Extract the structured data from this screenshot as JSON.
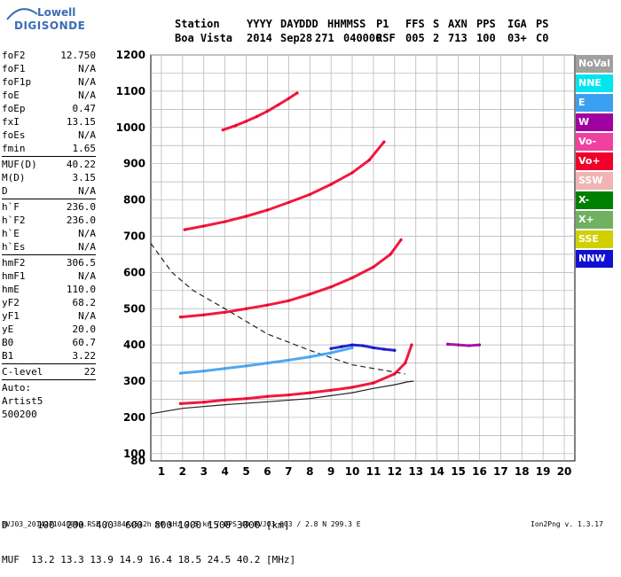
{
  "logo": {
    "line1": "Lowell",
    "line2": "DIGISONDE"
  },
  "header": {
    "labels": [
      "Station",
      "YYYY",
      "DAY",
      "DDD",
      "HHMMSS",
      "P1",
      "FFS",
      "S",
      "AXN",
      "PPS",
      "IGA",
      "PS"
    ],
    "values": [
      "Boa Vista",
      "2014",
      "Sep28",
      "271",
      "040000",
      "RSF",
      "005",
      "2",
      "713",
      "100",
      "03+",
      "C0"
    ]
  },
  "params": [
    {
      "name": "foF2",
      "value": "12.750"
    },
    {
      "name": "foF1",
      "value": "N/A"
    },
    {
      "name": "foF1p",
      "value": "N/A"
    },
    {
      "name": "foE",
      "value": "N/A"
    },
    {
      "name": "foEp",
      "value": "0.47"
    },
    {
      "name": "fxI",
      "value": "13.15"
    },
    {
      "name": "foEs",
      "value": "N/A"
    },
    {
      "name": "fmin",
      "value": "1.65",
      "sep": true
    },
    {
      "name": "MUF(D)",
      "value": "40.22"
    },
    {
      "name": "M(D)",
      "value": "3.15"
    },
    {
      "name": "D",
      "value": "N/A",
      "sep": true
    },
    {
      "name": "h`F",
      "value": "236.0"
    },
    {
      "name": "h`F2",
      "value": "236.0"
    },
    {
      "name": "h`E",
      "value": "N/A"
    },
    {
      "name": "h`Es",
      "value": "N/A",
      "sep": true
    },
    {
      "name": "hmF2",
      "value": "306.5"
    },
    {
      "name": "hmF1",
      "value": "N/A"
    },
    {
      "name": "hmE",
      "value": "110.0"
    },
    {
      "name": "yF2",
      "value": "68.2"
    },
    {
      "name": "yF1",
      "value": "N/A"
    },
    {
      "name": "yE",
      "value": "20.0"
    },
    {
      "name": "B0",
      "value": "60.7"
    },
    {
      "name": "B1",
      "value": "3.22",
      "sep": true
    },
    {
      "name": "C-level",
      "value": "22",
      "sep": true
    },
    {
      "name": "Auto:",
      "value": ""
    },
    {
      "name": "Artist5",
      "value": ""
    },
    {
      "name": "500200",
      "value": ""
    }
  ],
  "legend": [
    {
      "label": "NoVal",
      "color": "#a0a0a0"
    },
    {
      "label": "NNE",
      "color": "#00e5ee"
    },
    {
      "label": "E",
      "color": "#3ca0f0"
    },
    {
      "label": "W",
      "color": "#a000a0"
    },
    {
      "label": "Vo-",
      "color": "#f040a0"
    },
    {
      "label": "Vo+",
      "color": "#f0002a"
    },
    {
      "label": "SSW",
      "color": "#f0b4b4"
    },
    {
      "label": "X-",
      "color": "#008000"
    },
    {
      "label": "X+",
      "color": "#70b060"
    },
    {
      "label": "SSE",
      "color": "#d0d000"
    },
    {
      "label": "NNW",
      "color": "#1010d0"
    }
  ],
  "bottom": {
    "line1": "D     100  200  400  600  800 1000 1500 3000 [km]",
    "line2": "MUF  13.2 13.3 13.9 14.9 16.4 18.5 24.5 40.2 [MHz]"
  },
  "footer": {
    "left": "BVJ03_2014271040000.RSF / 384fx512h 50 kHz 2.5 km / DPS-4D BVJ03 003 / 2.8 N 299.3 E",
    "right": "Ion2Png v. 1.3.17"
  },
  "chart_data": {
    "type": "scatter",
    "xlim": [
      0.5,
      20.5
    ],
    "ylim": [
      80,
      1200
    ],
    "xticks": [
      1,
      2,
      3,
      4,
      5,
      6,
      7,
      8,
      9,
      10,
      11,
      12,
      13,
      14,
      15,
      16,
      17,
      18,
      19,
      20
    ],
    "yticks": [
      80,
      100,
      200,
      300,
      400,
      500,
      600,
      700,
      800,
      900,
      1000,
      1100,
      1200
    ],
    "grid": true,
    "legend_position": "right",
    "series": [
      {
        "legend_index": 5,
        "x": [
          1.9,
          3,
          4,
          5,
          6,
          7,
          8,
          9,
          10,
          11,
          12,
          12.5,
          12.8
        ],
        "y": [
          238,
          242,
          248,
          252,
          258,
          262,
          268,
          275,
          283,
          295,
          320,
          350,
          400
        ]
      },
      {
        "legend_index": 5,
        "x": [
          1.9,
          3,
          4,
          5,
          6,
          7,
          8,
          9,
          10,
          11,
          11.8,
          12.3
        ],
        "y": [
          477,
          483,
          490,
          500,
          510,
          522,
          540,
          560,
          585,
          615,
          650,
          690
        ]
      },
      {
        "legend_index": 5,
        "x": [
          2.1,
          3,
          4,
          5,
          6,
          7,
          8,
          9,
          10,
          10.8,
          11.5
        ],
        "y": [
          718,
          728,
          740,
          755,
          772,
          793,
          815,
          843,
          875,
          910,
          960
        ]
      },
      {
        "legend_index": 5,
        "x": [
          3.9,
          4.5,
          5,
          5.5,
          6,
          6.5,
          7,
          7.4
        ],
        "y": [
          993,
          1005,
          1017,
          1030,
          1045,
          1062,
          1080,
          1095
        ]
      },
      {
        "legend_index": 2,
        "x": [
          1.9,
          3,
          4,
          5,
          6,
          7,
          8,
          9,
          10
        ],
        "y": [
          322,
          328,
          335,
          342,
          350,
          358,
          367,
          378,
          392
        ]
      },
      {
        "legend_index": 10,
        "x": [
          9,
          9.5,
          10,
          10.5,
          11,
          11.5,
          12
        ],
        "y": [
          390,
          395,
          400,
          398,
          392,
          388,
          385
        ]
      },
      {
        "legend_index": 3,
        "x": [
          14.5,
          15,
          15.5,
          16
        ],
        "y": [
          402,
          400,
          398,
          400
        ]
      }
    ],
    "lines": [
      {
        "style": "solid",
        "x": [
          0.5,
          2,
          4,
          6,
          8,
          9,
          10,
          11,
          12,
          12.6,
          12.9
        ],
        "y": [
          210,
          225,
          235,
          243,
          252,
          260,
          268,
          280,
          290,
          298,
          300
        ]
      },
      {
        "style": "dashed",
        "x": [
          0.5,
          1.5,
          2.5,
          4,
          6,
          8,
          9,
          10,
          11,
          12,
          12.5
        ],
        "y": [
          680,
          600,
          550,
          500,
          430,
          385,
          365,
          345,
          335,
          325,
          320
        ]
      }
    ]
  }
}
